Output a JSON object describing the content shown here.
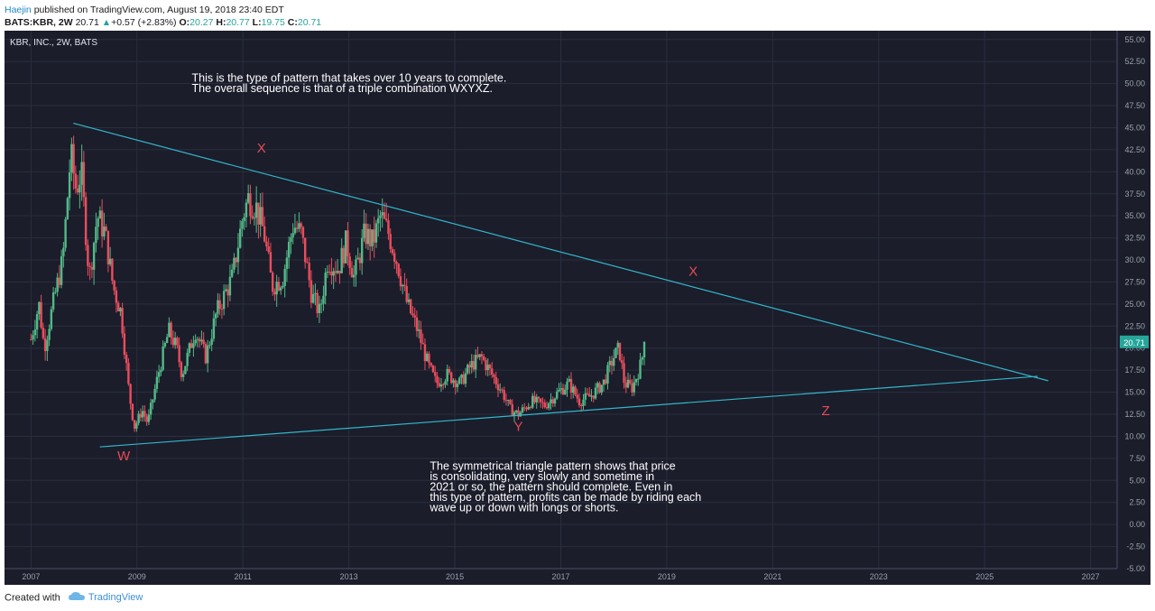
{
  "header": {
    "author": "Haejin",
    "published": " published on TradingView.com, August 19, 2018 23:40 EDT",
    "symbol": "BATS:KBR, 2W",
    "last": "20.71",
    "arrow": "▲",
    "change": "+0.57 (+2.83%)",
    "o_label": "O:",
    "o_val": "20.27",
    "h_label": "H:",
    "h_val": "20.77",
    "l_label": "L:",
    "l_val": "19.75",
    "c_label": "C:",
    "c_val": "20.71"
  },
  "footer": {
    "created_with": "Created with",
    "brand": "TradingView"
  },
  "colors": {
    "background": "#1b1d2b",
    "grid": "#2a2e3d",
    "up": "#53b987",
    "down": "#eb4d5c",
    "trendline": "#33b6c9",
    "label": "#e84b55",
    "text": "#ffffff",
    "axis_text": "#9aa0ad",
    "price_tag": "#26a69a"
  },
  "chart_data": {
    "type": "candlestick",
    "title": "KBR, INC., 2W, BATS",
    "y_ticks": [
      "55.00",
      "52.50",
      "50.00",
      "47.50",
      "45.00",
      "42.50",
      "40.00",
      "37.50",
      "35.00",
      "32.50",
      "30.00",
      "27.50",
      "25.00",
      "22.50",
      "20.00",
      "17.50",
      "15.00",
      "12.50",
      "10.00",
      "7.50",
      "5.00",
      "2.50",
      "0.00",
      "-2.50",
      "-5.00"
    ],
    "x_ticks": [
      "2007",
      "2009",
      "2011",
      "2013",
      "2015",
      "2017",
      "2019",
      "2021",
      "2023",
      "2025",
      "2027"
    ],
    "ylim": [
      -5,
      56
    ],
    "xlim": [
      2006.5,
      2027.5
    ],
    "last_price": "20.71",
    "price_path": [
      [
        2007.0,
        21
      ],
      [
        2007.15,
        25
      ],
      [
        2007.25,
        20
      ],
      [
        2007.45,
        26
      ],
      [
        2007.6,
        30
      ],
      [
        2007.75,
        42
      ],
      [
        2007.85,
        38
      ],
      [
        2007.95,
        40
      ],
      [
        2008.1,
        28
      ],
      [
        2008.25,
        35
      ],
      [
        2008.4,
        33
      ],
      [
        2008.55,
        27
      ],
      [
        2008.7,
        24
      ],
      [
        2008.85,
        15
      ],
      [
        2008.95,
        11
      ],
      [
        2009.1,
        13
      ],
      [
        2009.2,
        11.5
      ],
      [
        2009.4,
        17
      ],
      [
        2009.6,
        22
      ],
      [
        2009.75,
        20
      ],
      [
        2009.85,
        17
      ],
      [
        2010.1,
        22
      ],
      [
        2010.3,
        19
      ],
      [
        2010.5,
        24
      ],
      [
        2010.8,
        28
      ],
      [
        2011.0,
        35
      ],
      [
        2011.1,
        37
      ],
      [
        2011.25,
        36
      ],
      [
        2011.4,
        33
      ],
      [
        2011.55,
        27
      ],
      [
        2011.75,
        28
      ],
      [
        2011.95,
        34
      ],
      [
        2012.1,
        33
      ],
      [
        2012.3,
        26
      ],
      [
        2012.45,
        24
      ],
      [
        2012.6,
        30
      ],
      [
        2012.8,
        29
      ],
      [
        2012.95,
        32
      ],
      [
        2013.1,
        28
      ],
      [
        2013.3,
        33
      ],
      [
        2013.45,
        32
      ],
      [
        2013.6,
        35
      ],
      [
        2013.75,
        33
      ],
      [
        2013.9,
        30
      ],
      [
        2014.1,
        25
      ],
      [
        2014.3,
        22
      ],
      [
        2014.5,
        18
      ],
      [
        2014.65,
        16
      ],
      [
        2014.85,
        17
      ],
      [
        2015.1,
        16
      ],
      [
        2015.3,
        18
      ],
      [
        2015.5,
        19
      ],
      [
        2015.7,
        17
      ],
      [
        2015.9,
        15
      ],
      [
        2016.05,
        13
      ],
      [
        2016.2,
        12.5
      ],
      [
        2016.45,
        14
      ],
      [
        2016.7,
        13.5
      ],
      [
        2016.95,
        15
      ],
      [
        2017.15,
        16
      ],
      [
        2017.35,
        14
      ],
      [
        2017.55,
        14.5
      ],
      [
        2017.8,
        16
      ],
      [
        2018.0,
        19
      ],
      [
        2018.1,
        20
      ],
      [
        2018.2,
        16
      ],
      [
        2018.35,
        15.5
      ],
      [
        2018.5,
        18
      ],
      [
        2018.6,
        20.7
      ]
    ],
    "trendlines": [
      {
        "x1": 2007.8,
        "y1": 45.5,
        "x2": 2026.2,
        "y2": 16.3
      },
      {
        "x1": 2008.3,
        "y1": 8.8,
        "x2": 2026.0,
        "y2": 16.8
      }
    ],
    "wave_labels": [
      {
        "text": "X",
        "x": 2011.35,
        "y": 42.2
      },
      {
        "text": "W",
        "x": 2008.75,
        "y": 7.3
      },
      {
        "text": "Y",
        "x": 2016.2,
        "y": 10.6
      },
      {
        "text": "X",
        "x": 2019.5,
        "y": 28.2
      },
      {
        "text": "Z",
        "x": 2022.0,
        "y": 12.4
      }
    ],
    "annotations": [
      {
        "lines": [
          "This is the type of pattern that takes over 10 years to complete.",
          "The overall sequence  is that of a triple combination WXYXZ."
        ],
        "x": 2013.1,
        "y": 50.2
      },
      {
        "lines": [
          "The symmetrical triangle pattern shows that price",
          "is consolidating, very slowly and sometime in",
          "2021 or so, the pattern should complete. Even in",
          "this type of pattern, profits can be made by riding each",
          "wave up or down with longs or shorts."
        ],
        "x": 2016.3,
        "y": 6.2
      }
    ]
  }
}
